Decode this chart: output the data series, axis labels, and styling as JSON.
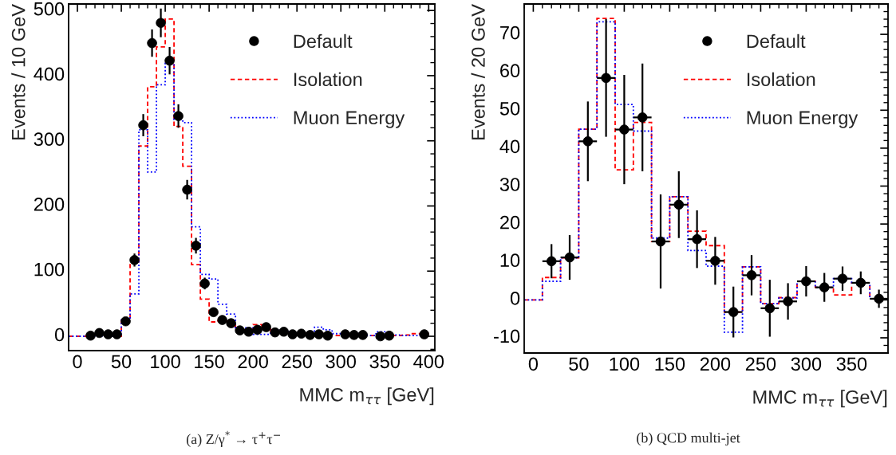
{
  "chart_data": [
    {
      "type": "histogram",
      "title": "(a) Z/γ$^{*}$ → τ$^{+}$τ$^{−}$",
      "xlabel": "MMC m$_{ττ}$ [GeV]",
      "ylabel": "Events / 10 GeV",
      "bins": [
        -10,
        0,
        10,
        20,
        30,
        40,
        50,
        60,
        70,
        80,
        90,
        100,
        110,
        120,
        130,
        140,
        150,
        160,
        170,
        180,
        190,
        200,
        210,
        220,
        230,
        240,
        250,
        260,
        270,
        280,
        290,
        300,
        310,
        320,
        330,
        340,
        350,
        360,
        370,
        380,
        390,
        400
      ],
      "xlim": [
        -10,
        407
      ],
      "ylim": [
        -22,
        510
      ],
      "xticks": [
        0,
        50,
        100,
        150,
        200,
        250,
        300,
        350,
        400
      ],
      "yticks": [
        0,
        100,
        200,
        300,
        400,
        500
      ],
      "grid": false,
      "legend": "top right",
      "series": [
        {
          "name": "Default",
          "type": "scatter",
          "marker": "circle",
          "color": "#000000",
          "x": [
            15,
            25,
            35,
            45,
            55,
            65,
            75,
            85,
            95,
            105,
            115,
            125,
            135,
            145,
            155,
            165,
            175,
            185,
            195,
            205,
            215,
            225,
            235,
            245,
            255,
            265,
            275,
            285,
            295,
            305,
            315,
            325,
            335,
            345,
            355,
            365,
            375,
            385,
            395
          ],
          "values": [
            1,
            5,
            3,
            3,
            23,
            117,
            324,
            450,
            481,
            423,
            338,
            225,
            139,
            81,
            37,
            25,
            20,
            9,
            7,
            10,
            14,
            6,
            7,
            3,
            4,
            2,
            3,
            1,
            null,
            3,
            2,
            2,
            null,
            0,
            1,
            null,
            null,
            null,
            3
          ],
          "errors": [
            null,
            null,
            null,
            null,
            null,
            10,
            17,
            21,
            22,
            21,
            18,
            15,
            12,
            9,
            null,
            null,
            null,
            null,
            null,
            null,
            null,
            null,
            null,
            null,
            null,
            null,
            null,
            null,
            null,
            null,
            null,
            null,
            null,
            null,
            null,
            null,
            null,
            null,
            null
          ]
        },
        {
          "name": "Isolation",
          "line_style": "dashed",
          "color": "#ff0000",
          "values": [
            0,
            0,
            0,
            0,
            0,
            0,
            25,
            112,
            292,
            383,
            444,
            487,
            322,
            261,
            110,
            57,
            22,
            24,
            20,
            10,
            10,
            18,
            12,
            8,
            8,
            5,
            5,
            4,
            4,
            3,
            1,
            2,
            2,
            1,
            1,
            1,
            1,
            1,
            2,
            4,
            4
          ]
        },
        {
          "name": "Muon Energy",
          "line_style": "dotted",
          "color": "#0000ff",
          "values": [
            0,
            0,
            0,
            0,
            0,
            0,
            25,
            65,
            317,
            252,
            386,
            419,
            333,
            328,
            168,
            95,
            88,
            49,
            34,
            13,
            13,
            3,
            3,
            9,
            9,
            5,
            5,
            3,
            14,
            10,
            4,
            4,
            4,
            2,
            1,
            7,
            2,
            2,
            1,
            1,
            2
          ]
        }
      ]
    },
    {
      "type": "histogram",
      "title": "(b) QCD multi-jet",
      "xlabel": "MMC m$_{ττ}$ [GeV]",
      "ylabel": "Events / 20 GeV",
      "bins": [
        -10,
        10,
        30,
        50,
        70,
        90,
        110,
        130,
        150,
        170,
        190,
        210,
        230,
        250,
        270,
        290,
        310,
        330,
        350,
        370,
        390
      ],
      "xlim": [
        -10,
        390
      ],
      "ylim": [
        -14,
        78
      ],
      "xticks": [
        0,
        50,
        100,
        150,
        200,
        250,
        300,
        350
      ],
      "yticks": [
        {
          "value": -10,
          "label": "-10"
        },
        0,
        10,
        20,
        30,
        40,
        50,
        60,
        70
      ],
      "grid": false,
      "legend": "top right",
      "series": [
        {
          "name": "Default",
          "type": "scatter",
          "marker": "circle",
          "color": "#000000",
          "x": [
            20,
            40,
            60,
            80,
            100,
            120,
            140,
            160,
            180,
            200,
            220,
            240,
            260,
            280,
            300,
            320,
            340,
            360,
            380
          ],
          "values": [
            10.2,
            11.2,
            41.8,
            58.5,
            44.9,
            48.1,
            15.4,
            25.1,
            16.0,
            10.3,
            -3.2,
            6.5,
            -2.2,
            -0.4,
            4.9,
            3.3,
            5.6,
            4.5,
            0.3
          ],
          "errors": [
            4.5,
            5.9,
            10.5,
            15.5,
            14.4,
            14.2,
            12.4,
            8.8,
            7.6,
            6.3,
            6.7,
            5.3,
            7.5,
            4.8,
            4.0,
            3.8,
            3.2,
            3.0,
            2.4
          ],
          "xerrors": [
            10,
            10,
            10,
            10,
            10,
            10,
            10,
            10,
            10,
            10,
            10,
            10,
            10,
            10,
            10,
            10,
            10,
            10,
            10
          ]
        },
        {
          "name": "Isolation",
          "line_style": "dashed",
          "color": "#ff0000",
          "values": [
            0,
            5.9,
            11.1,
            45.0,
            74.2,
            34.3,
            46.8,
            15.4,
            27.2,
            18.1,
            14.3,
            -3.2,
            8.7,
            -1.0,
            0.6,
            4.9,
            3.3,
            1.3,
            4.5,
            0.3
          ]
        },
        {
          "name": "Muon Energy",
          "line_style": "dotted",
          "color": "#0000ff",
          "values": [
            0,
            4.9,
            11.1,
            45.0,
            73.3,
            51.5,
            44.5,
            16.3,
            27.2,
            13.0,
            8.9,
            -8.5,
            8.7,
            -1.0,
            0.5,
            4.9,
            3.3,
            5.6,
            4.5,
            0.3
          ]
        }
      ]
    }
  ]
}
